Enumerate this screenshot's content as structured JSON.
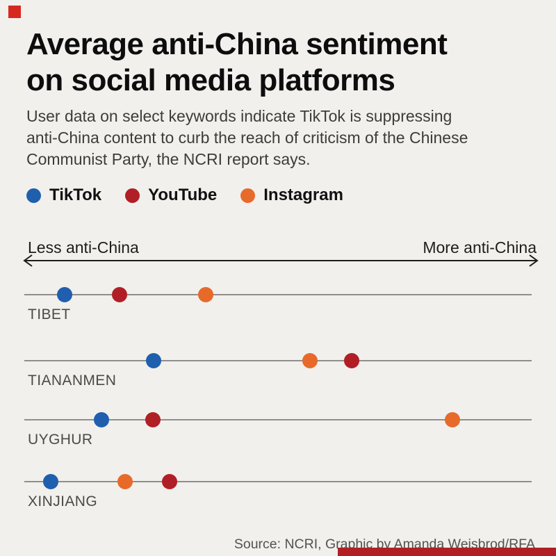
{
  "branding": {
    "corner_color": "#d7281f",
    "bar_color": "#b01f24"
  },
  "header": {
    "title_lines": [
      "Average anti-China sentiment",
      "on social media platforms"
    ],
    "subtitle": "User data on select keywords indicate TikTok is suppressing anti-China content to curb the reach of criticism of the Chinese Communist Party, the NCRI report says."
  },
  "legend": {
    "items": [
      {
        "label": "TikTok",
        "color": "#1f5fad"
      },
      {
        "label": "YouTube",
        "color": "#b11f26"
      },
      {
        "label": "Instagram",
        "color": "#e76a2a"
      }
    ]
  },
  "axis": {
    "left_label": "Less anti-China",
    "right_label": "More anti-China"
  },
  "footer": {
    "source": "Source: NCRI, Graphic by Amanda Weisbrod/RFA"
  },
  "chart_data": {
    "type": "scatter",
    "variant": "horizontal-dot-plot",
    "title": "Average anti-China sentiment on social media platforms",
    "categories": [
      "TIBET",
      "TIANANMEN",
      "UYGHUR",
      "XINJIANG"
    ],
    "x_axis": {
      "left_annotation": "Less anti-China",
      "right_annotation": "More anti-China",
      "range_percent": [
        0,
        100
      ],
      "ticks_shown": false,
      "grid": false
    },
    "legend_position": "top-left",
    "series": [
      {
        "name": "TikTok",
        "color": "#1f5fad",
        "values_percent": [
          8,
          25.5,
          15.2,
          5.2
        ]
      },
      {
        "name": "YouTube",
        "color": "#b11f26",
        "values_percent": [
          18.8,
          64.5,
          25.3,
          28.6
        ]
      },
      {
        "name": "Instagram",
        "color": "#e76a2a",
        "values_percent": [
          35.8,
          56.3,
          84.4,
          19.9
        ]
      }
    ]
  }
}
